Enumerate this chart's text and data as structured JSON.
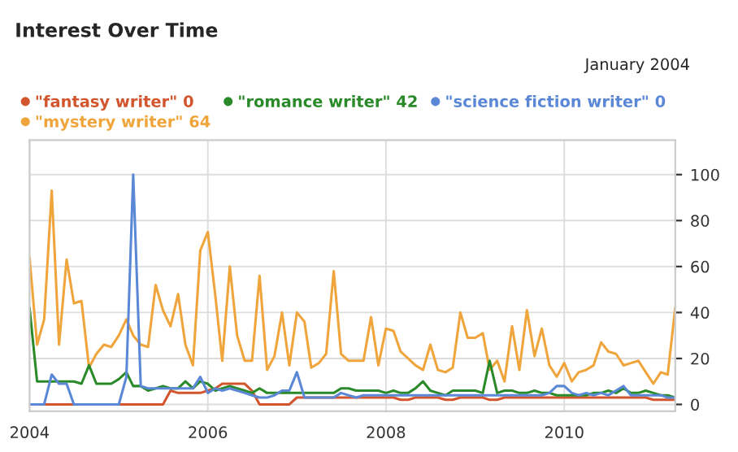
{
  "chart_data": {
    "type": "line",
    "title": "Interest Over Time",
    "annotations": [
      "January 2004"
    ],
    "x": [
      "2004-01",
      "2004-02",
      "2004-03",
      "2004-04",
      "2004-05",
      "2004-06",
      "2004-07",
      "2004-08",
      "2004-09",
      "2004-10",
      "2004-11",
      "2004-12",
      "2005-01",
      "2005-02",
      "2005-03",
      "2005-04",
      "2005-05",
      "2005-06",
      "2005-07",
      "2005-08",
      "2005-09",
      "2005-10",
      "2005-11",
      "2005-12",
      "2006-01",
      "2006-02",
      "2006-03",
      "2006-04",
      "2006-05",
      "2006-06",
      "2006-07",
      "2006-08",
      "2006-09",
      "2006-10",
      "2006-11",
      "2006-12",
      "2007-01",
      "2007-02",
      "2007-03",
      "2007-04",
      "2007-05",
      "2007-06",
      "2007-07",
      "2007-08",
      "2007-09",
      "2007-10",
      "2007-11",
      "2007-12",
      "2008-01",
      "2008-02",
      "2008-03",
      "2008-04",
      "2008-05",
      "2008-06",
      "2008-07",
      "2008-08",
      "2008-09",
      "2008-10",
      "2008-11",
      "2008-12",
      "2009-01",
      "2009-02",
      "2009-03",
      "2009-04",
      "2009-05",
      "2009-06",
      "2009-07",
      "2009-08",
      "2009-09",
      "2009-10",
      "2009-11",
      "2009-12",
      "2010-01",
      "2010-02",
      "2010-03",
      "2010-04",
      "2010-05",
      "2010-06",
      "2010-07",
      "2010-08",
      "2010-09",
      "2010-10",
      "2010-11",
      "2010-12",
      "2011-01",
      "2011-02",
      "2011-03",
      "2011-04"
    ],
    "series": [
      {
        "name": "\"fantasy writer\" 0",
        "color": "#d2552d",
        "values": [
          0,
          0,
          0,
          0,
          0,
          0,
          0,
          0,
          0,
          0,
          0,
          0,
          0,
          0,
          0,
          0,
          0,
          0,
          0,
          6,
          5,
          5,
          5,
          5,
          6,
          7,
          9,
          9,
          9,
          9,
          6,
          0,
          0,
          0,
          0,
          0,
          3,
          3,
          null,
          null,
          null,
          3,
          3,
          3,
          3,
          3,
          3,
          3,
          3,
          3,
          2,
          2,
          3,
          3,
          3,
          3,
          2,
          2,
          3,
          3,
          3,
          3,
          2,
          2,
          3,
          3,
          3,
          3,
          3,
          3,
          3,
          3,
          3,
          3,
          3,
          3,
          3,
          3,
          3,
          3,
          3,
          3,
          3,
          3,
          2,
          2,
          2,
          2
        ]
      },
      {
        "name": "\"mystery writer\" 64",
        "color": "#f0a53c",
        "values": [
          64,
          26,
          37,
          93,
          26,
          63,
          44,
          45,
          16,
          22,
          26,
          25,
          30,
          37,
          30,
          26,
          25,
          52,
          41,
          34,
          48,
          26,
          17,
          67,
          75,
          47,
          19,
          60,
          30,
          19,
          19,
          56,
          15,
          21,
          40,
          17,
          40,
          36,
          16,
          18,
          22,
          58,
          22,
          19,
          19,
          19,
          38,
          17,
          33,
          32,
          23,
          20,
          17,
          15,
          26,
          15,
          14,
          16,
          40,
          29,
          29,
          31,
          15,
          19,
          10,
          34,
          15,
          41,
          21,
          33,
          17,
          12,
          18,
          10,
          14,
          15,
          17,
          27,
          23,
          22,
          17,
          18,
          19,
          14,
          9,
          14,
          13,
          42
        ]
      },
      {
        "name": "\"romance writer\" 42",
        "color": "#2a8a2a",
        "values": [
          42,
          10,
          10,
          10,
          10,
          10,
          10,
          9,
          17,
          9,
          9,
          9,
          11,
          14,
          8,
          8,
          6,
          7,
          8,
          7,
          7,
          10,
          7,
          10,
          9,
          6,
          7,
          8,
          7,
          6,
          5,
          7,
          5,
          5,
          5,
          5,
          5,
          5,
          5,
          5,
          5,
          5,
          7,
          7,
          6,
          6,
          6,
          6,
          5,
          6,
          5,
          5,
          7,
          10,
          6,
          5,
          4,
          6,
          6,
          6,
          6,
          5,
          19,
          5,
          6,
          6,
          5,
          5,
          6,
          5,
          5,
          4,
          4,
          4,
          4,
          4,
          5,
          5,
          6,
          5,
          7,
          5,
          5,
          6,
          5,
          4,
          4,
          3
        ]
      },
      {
        "name": "\"science fiction writer\" 0",
        "color": "#5b88d6",
        "values": [
          0,
          0,
          0,
          13,
          9,
          9,
          0,
          0,
          0,
          0,
          0,
          0,
          0,
          12,
          100,
          8,
          7,
          7,
          7,
          7,
          7,
          7,
          7,
          12,
          5,
          7,
          6,
          7,
          6,
          5,
          4,
          3,
          3,
          4,
          6,
          6,
          14,
          3,
          3,
          3,
          3,
          3,
          5,
          4,
          3,
          4,
          4,
          4,
          4,
          4,
          4,
          4,
          4,
          4,
          4,
          4,
          4,
          4,
          4,
          4,
          4,
          4,
          4,
          4,
          4,
          4,
          4,
          4,
          4,
          4,
          5,
          8,
          8,
          5,
          4,
          5,
          4,
          5,
          4,
          6,
          8,
          4,
          4,
          4,
          4,
          4,
          3,
          3
        ]
      }
    ],
    "xlim": [
      "2004-01",
      "2011-04"
    ],
    "xticks": [
      {
        "value": "2004-01",
        "label": "2004"
      },
      {
        "value": "2006-01",
        "label": "2006"
      },
      {
        "value": "2008-01",
        "label": "2008"
      },
      {
        "value": "2010-01",
        "label": "2010"
      }
    ],
    "ylim": [
      -3,
      115
    ],
    "yticks": [
      0,
      20,
      40,
      60,
      80,
      100
    ],
    "grid": true,
    "legend": "top right",
    "marker": "none",
    "line_style": "solid"
  }
}
